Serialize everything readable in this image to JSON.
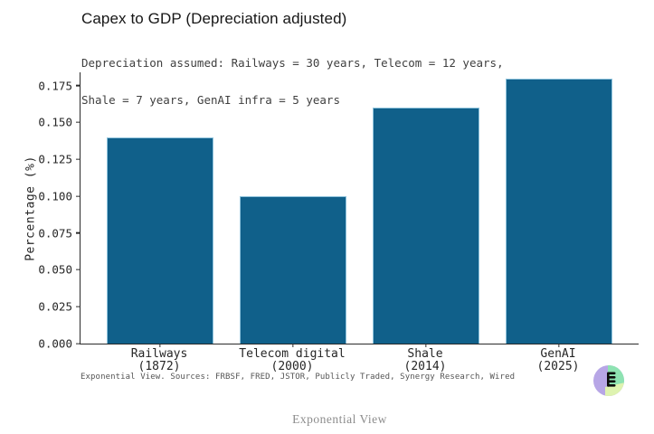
{
  "page": {
    "background": "#ffffff",
    "footer_caption": "Exponential View"
  },
  "chart_data": {
    "type": "bar",
    "title": "Capex to GDP (Depreciation adjusted)",
    "subtitle_lines": [
      "Depreciation assumed: Railways = 30 years, Telecom = 12 years,",
      "Shale = 7 years, GenAI infra = 5 years"
    ],
    "ylabel": "Percentage (%)",
    "xlabel": "",
    "categories": [
      "Railways",
      "Telecom digital",
      "Shale",
      "GenAI"
    ],
    "category_years": [
      "(1872)",
      "(2000)",
      "(2014)",
      "(2025)"
    ],
    "values": [
      0.14,
      0.1,
      0.16,
      0.18
    ],
    "ylim": [
      0,
      0.184
    ],
    "yticks": [
      0.0,
      0.025,
      0.05,
      0.075,
      0.1,
      0.125,
      0.15,
      0.175
    ],
    "ytick_labels": [
      "0.000",
      "0.025",
      "0.050",
      "0.075",
      "0.100",
      "0.125",
      "0.150",
      "0.175"
    ],
    "grid": false,
    "legend": "none",
    "bar_color": "#10608a",
    "bar_edge_color": "#8fc3dc",
    "source_note": "Exponential View. Sources: FRBSF, FRED, JSTOR, Publicly Traded, Synergy Research, Wired"
  },
  "logo": {
    "name": "exponential-view-logo",
    "colors": {
      "left": "#b7a6e6",
      "top_right": "#8ee3b2",
      "bottom": "#def3b0",
      "glyph": "#0c0c0c"
    }
  }
}
